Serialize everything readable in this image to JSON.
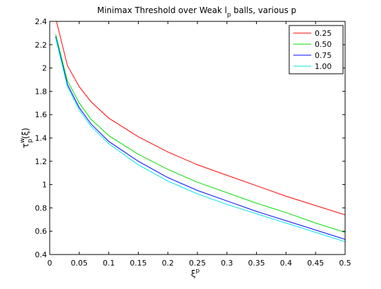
{
  "chart_data": {
    "type": "line",
    "title_parts": {
      "before": "Minimax Threshold over Weak l",
      "sub": "p",
      "after": " balls, various p"
    },
    "xlabel": {
      "base": "ξ",
      "sup": "p"
    },
    "ylabel": {
      "base": "τ",
      "sup": "w",
      "sub": "p",
      "tail": "(ξ)"
    },
    "xlim": [
      0,
      0.5
    ],
    "ylim": [
      0.4,
      2.4
    ],
    "xticks": [
      0,
      0.05,
      0.1,
      0.15,
      0.2,
      0.25,
      0.3,
      0.35,
      0.4,
      0.45,
      0.5
    ],
    "xtick_labels": [
      "0",
      "0.05",
      "0.1",
      "0.15",
      "0.2",
      "0.25",
      "0.3",
      "0.35",
      "0.4",
      "0.45",
      "0.5"
    ],
    "yticks": [
      0.4,
      0.6,
      0.8,
      1,
      1.2,
      1.4,
      1.6,
      1.8,
      2,
      2.2,
      2.4
    ],
    "ytick_labels": [
      "0.4",
      "0.6",
      "0.8",
      "1",
      "1.2",
      "1.4",
      "1.6",
      "1.8",
      "2",
      "2.2",
      "2.4"
    ],
    "grid": false,
    "legend_position": "top-right",
    "series": [
      {
        "name": "0.25",
        "color": "#ff0000",
        "x": [
          0.01,
          0.03,
          0.05,
          0.07,
          0.1,
          0.15,
          0.2,
          0.25,
          0.3,
          0.35,
          0.4,
          0.45,
          0.5
        ],
        "y": [
          2.43,
          2.02,
          1.84,
          1.71,
          1.57,
          1.41,
          1.28,
          1.17,
          1.08,
          0.99,
          0.9,
          0.82,
          0.74
        ]
      },
      {
        "name": "0.50",
        "color": "#00dd00",
        "x": [
          0.01,
          0.03,
          0.05,
          0.07,
          0.1,
          0.15,
          0.2,
          0.25,
          0.3,
          0.35,
          0.4,
          0.45,
          0.5
        ],
        "y": [
          2.29,
          1.89,
          1.7,
          1.56,
          1.42,
          1.26,
          1.13,
          1.02,
          0.93,
          0.84,
          0.76,
          0.67,
          0.59
        ]
      },
      {
        "name": "0.75",
        "color": "#0000ff",
        "x": [
          0.01,
          0.03,
          0.05,
          0.07,
          0.1,
          0.15,
          0.2,
          0.25,
          0.3,
          0.35,
          0.4,
          0.45,
          0.5
        ],
        "y": [
          2.27,
          1.86,
          1.66,
          1.52,
          1.37,
          1.2,
          1.06,
          0.95,
          0.86,
          0.77,
          0.69,
          0.61,
          0.53
        ]
      },
      {
        "name": "1.00",
        "color": "#00e5e5",
        "x": [
          0.01,
          0.03,
          0.05,
          0.07,
          0.1,
          0.15,
          0.2,
          0.25,
          0.3,
          0.35,
          0.4,
          0.45,
          0.5
        ],
        "y": [
          2.26,
          1.84,
          1.64,
          1.5,
          1.35,
          1.17,
          1.03,
          0.92,
          0.83,
          0.75,
          0.67,
          0.59,
          0.51
        ]
      }
    ]
  }
}
